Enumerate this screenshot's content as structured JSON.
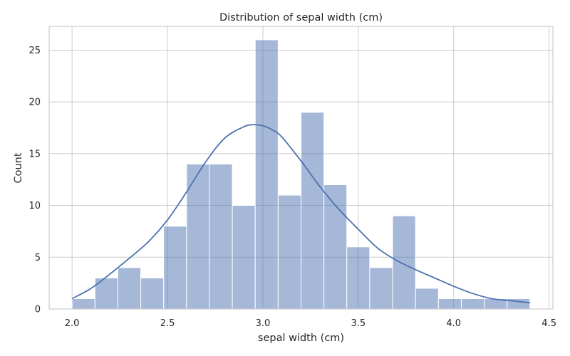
{
  "chart_data": {
    "type": "bar",
    "subtype": "histogram-with-kde",
    "title": "Distribution of sepal width (cm)",
    "xlabel": "sepal width (cm)",
    "ylabel": "Count",
    "xlim": [
      1.88,
      4.52
    ],
    "ylim": [
      0,
      27.3
    ],
    "xticks": [
      "2.0",
      "2.5",
      "3.0",
      "3.5",
      "4.0",
      "4.5"
    ],
    "yticks": [
      "0",
      "5",
      "10",
      "15",
      "20",
      "25"
    ],
    "grid": true,
    "bin_edges": [
      2.0,
      2.12,
      2.24,
      2.36,
      2.48,
      2.6,
      2.72,
      2.84,
      2.96,
      3.08,
      3.2,
      3.32,
      3.44,
      3.56,
      3.68,
      3.8,
      3.92,
      4.04,
      4.16,
      4.28,
      4.4
    ],
    "counts": [
      1,
      3,
      4,
      3,
      8,
      14,
      14,
      10,
      26,
      11,
      19,
      12,
      6,
      4,
      9,
      2,
      1,
      1,
      1,
      1
    ],
    "kde": {
      "x": [
        2.0,
        2.1,
        2.2,
        2.3,
        2.4,
        2.5,
        2.6,
        2.7,
        2.8,
        2.9,
        2.95,
        3.0,
        3.05,
        3.1,
        3.2,
        3.3,
        3.4,
        3.5,
        3.6,
        3.7,
        3.8,
        3.9,
        4.0,
        4.1,
        4.2,
        4.3,
        4.4
      ],
      "y": [
        1.0,
        2.0,
        3.4,
        4.9,
        6.5,
        8.6,
        11.3,
        14.2,
        16.5,
        17.6,
        17.8,
        17.7,
        17.3,
        16.6,
        14.3,
        11.8,
        9.6,
        7.7,
        5.9,
        4.7,
        3.8,
        3.0,
        2.2,
        1.5,
        1.0,
        0.8,
        0.6
      ]
    },
    "colors": {
      "bar": "#4c72b0",
      "line": "#4c72b0",
      "grid": "#cccccc",
      "text": "#262626"
    }
  }
}
